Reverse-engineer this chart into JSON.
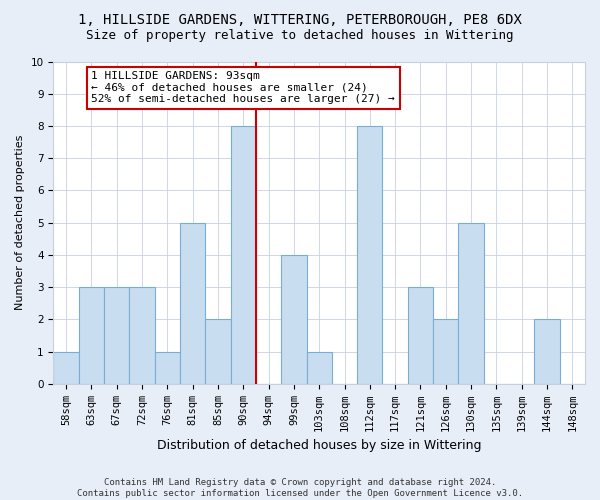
{
  "title": "1, HILLSIDE GARDENS, WITTERING, PETERBOROUGH, PE8 6DX",
  "subtitle": "Size of property relative to detached houses in Wittering",
  "xlabel": "Distribution of detached houses by size in Wittering",
  "ylabel": "Number of detached properties",
  "categories": [
    "58sqm",
    "63sqm",
    "67sqm",
    "72sqm",
    "76sqm",
    "81sqm",
    "85sqm",
    "90sqm",
    "94sqm",
    "99sqm",
    "103sqm",
    "108sqm",
    "112sqm",
    "117sqm",
    "121sqm",
    "126sqm",
    "130sqm",
    "135sqm",
    "139sqm",
    "144sqm",
    "148sqm"
  ],
  "values": [
    1,
    3,
    3,
    3,
    1,
    5,
    2,
    8,
    0,
    4,
    1,
    0,
    8,
    0,
    3,
    2,
    5,
    0,
    0,
    2,
    0
  ],
  "bar_color": "#c9ddf0",
  "bar_edge_color": "#7aadd4",
  "vline_color": "#cc0000",
  "vline_pos": 7.5,
  "annotation_text": "1 HILLSIDE GARDENS: 93sqm\n← 46% of detached houses are smaller (24)\n52% of semi-detached houses are larger (27) →",
  "annotation_box_facecolor": "#ffffff",
  "annotation_box_edgecolor": "#cc0000",
  "ylim": [
    0,
    10
  ],
  "yticks": [
    0,
    1,
    2,
    3,
    4,
    5,
    6,
    7,
    8,
    9,
    10
  ],
  "footer": "Contains HM Land Registry data © Crown copyright and database right 2024.\nContains public sector information licensed under the Open Government Licence v3.0.",
  "title_fontsize": 10,
  "subtitle_fontsize": 9,
  "xlabel_fontsize": 9,
  "ylabel_fontsize": 8,
  "tick_fontsize": 7.5,
  "annotation_fontsize": 8,
  "footer_fontsize": 6.5,
  "fig_bg_color": "#e8eef8",
  "plot_bg_color": "#ffffff",
  "grid_color": "#c8d0e0"
}
